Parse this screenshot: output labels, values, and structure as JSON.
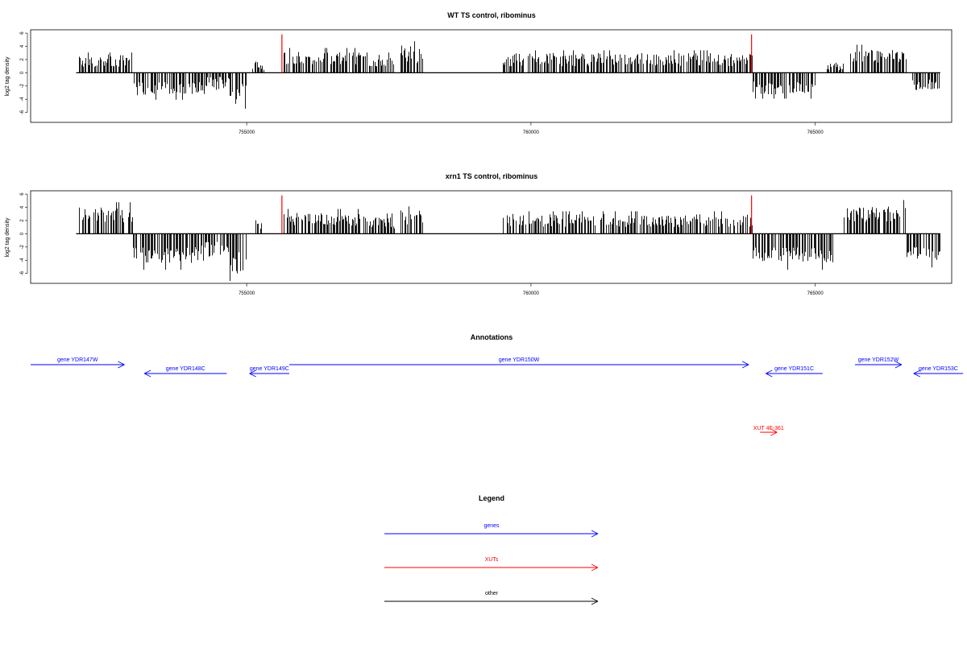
{
  "chart_data": [
    {
      "type": "bar",
      "title": "WT TS control, ribominus",
      "ylabel": "log2 tag density",
      "xlabel": "",
      "xlim": [
        751200,
        767400
      ],
      "ylim": [
        -7.5,
        6.5
      ],
      "x_ticks": [
        755000,
        760000,
        765000
      ],
      "x_tick_labels": [
        "755000",
        "760000",
        "765000"
      ],
      "y_ticks": [
        -6,
        -4,
        -2,
        0,
        2,
        4,
        6
      ],
      "y_tick_labels": [
        "-6",
        "-4",
        "-2",
        "0",
        "2",
        "4",
        "6"
      ],
      "baseline_range": [
        752000,
        767200
      ],
      "highlight_x": [
        755620,
        763880
      ],
      "highlight_color": "#ff0000",
      "segments": [
        {
          "start": 752050,
          "end": 753000,
          "mean": 1.8,
          "amp": 1.0
        },
        {
          "start": 753000,
          "end": 754250,
          "mean": -2.4,
          "amp": 1.0
        },
        {
          "start": 754250,
          "end": 754700,
          "mean": -1.6,
          "amp": 1.0
        },
        {
          "start": 754700,
          "end": 755000,
          "mean": -3.2,
          "amp": 1.6
        },
        {
          "start": 755100,
          "end": 755300,
          "mean": 1.0,
          "amp": 0.6
        },
        {
          "start": 755650,
          "end": 757000,
          "mean": 2.2,
          "amp": 1.0
        },
        {
          "start": 757000,
          "end": 757600,
          "mean": 1.8,
          "amp": 1.0
        },
        {
          "start": 757700,
          "end": 758100,
          "mean": 2.8,
          "amp": 1.4
        },
        {
          "start": 759500,
          "end": 763900,
          "mean": 2.0,
          "amp": 1.0
        },
        {
          "start": 763900,
          "end": 765000,
          "mean": -2.3,
          "amp": 1.0
        },
        {
          "start": 765200,
          "end": 765500,
          "mean": 0.9,
          "amp": 0.5
        },
        {
          "start": 765600,
          "end": 766600,
          "mean": 2.5,
          "amp": 1.0
        },
        {
          "start": 766700,
          "end": 767200,
          "mean": -1.9,
          "amp": 0.9
        }
      ]
    },
    {
      "type": "bar",
      "title": "xrn1 TS control, ribominus",
      "ylabel": "log2 tag density",
      "xlabel": "",
      "xlim": [
        751200,
        767400
      ],
      "ylim": [
        -7.5,
        6.5
      ],
      "x_ticks": [
        755000,
        760000,
        765000
      ],
      "x_tick_labels": [
        "755000",
        "760000",
        "765000"
      ],
      "y_ticks": [
        -6,
        -4,
        -2,
        0,
        2,
        4,
        6
      ],
      "y_tick_labels": [
        "-6",
        "-4",
        "-2",
        "0",
        "2",
        "4",
        "6"
      ],
      "baseline_range": [
        752000,
        767200
      ],
      "highlight_x": [
        755620,
        763880
      ],
      "highlight_color": "#ff0000",
      "segments": [
        {
          "start": 752050,
          "end": 753000,
          "mean": 2.8,
          "amp": 1.2
        },
        {
          "start": 753000,
          "end": 754200,
          "mean": -3.2,
          "amp": 1.2
        },
        {
          "start": 754200,
          "end": 754700,
          "mean": -2.4,
          "amp": 1.2
        },
        {
          "start": 754700,
          "end": 755000,
          "mean": -4.2,
          "amp": 1.8
        },
        {
          "start": 755100,
          "end": 755300,
          "mean": 1.2,
          "amp": 0.6
        },
        {
          "start": 755650,
          "end": 757000,
          "mean": 2.2,
          "amp": 1.0
        },
        {
          "start": 757000,
          "end": 757600,
          "mean": 1.8,
          "amp": 1.0
        },
        {
          "start": 757700,
          "end": 758100,
          "mean": 2.8,
          "amp": 1.4
        },
        {
          "start": 759500,
          "end": 763900,
          "mean": 2.0,
          "amp": 1.0
        },
        {
          "start": 763900,
          "end": 765300,
          "mean": -3.2,
          "amp": 1.2
        },
        {
          "start": 765500,
          "end": 766600,
          "mean": 3.0,
          "amp": 1.2
        },
        {
          "start": 766600,
          "end": 767200,
          "mean": -3.0,
          "amp": 1.0
        }
      ]
    }
  ],
  "annotations": {
    "title": "Annotations",
    "items": [
      {
        "label": "gene YDR147W",
        "start": 751200,
        "end": 752850,
        "strand": "+",
        "row": 0,
        "color": "#0000ff"
      },
      {
        "label": "gene YDR148C",
        "start": 753200,
        "end": 754650,
        "strand": "-",
        "row": 1,
        "color": "#0000ff"
      },
      {
        "label": "gene YDR149C",
        "start": 755050,
        "end": 755750,
        "strand": "-",
        "row": 1,
        "color": "#0000ff"
      },
      {
        "label": "gene YDR150W",
        "start": 755750,
        "end": 763830,
        "strand": "+",
        "row": 0,
        "color": "#0000ff"
      },
      {
        "label": "gene YDR151C",
        "start": 764130,
        "end": 765130,
        "strand": "-",
        "row": 1,
        "color": "#0000ff"
      },
      {
        "label": "gene YDR152W",
        "start": 765700,
        "end": 766520,
        "strand": "+",
        "row": 0,
        "color": "#0000ff"
      },
      {
        "label": "gene YDR153C",
        "start": 766730,
        "end": 767600,
        "strand": "-",
        "row": 1,
        "color": "#0000ff"
      },
      {
        "label": "XUT 4F-361",
        "start": 764030,
        "end": 764330,
        "strand": "+",
        "row": 2,
        "color": "#ff0000"
      }
    ]
  },
  "legend": {
    "title": "Legend",
    "items": [
      {
        "label": "genes",
        "color": "#0000ff"
      },
      {
        "label": "XUTs",
        "color": "#ff0000"
      },
      {
        "label": "other",
        "color": "#000000"
      }
    ]
  }
}
